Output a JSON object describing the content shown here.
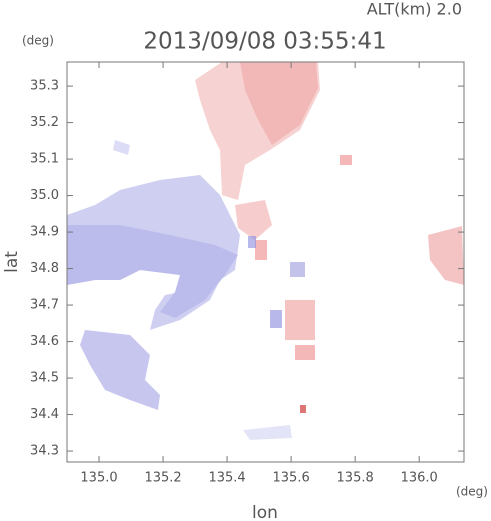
{
  "chart_data": {
    "type": "map",
    "title": "2013/09/08 03:55:41",
    "subtitle": "ALT(km) 2.0",
    "x_label": "lon",
    "y_label": "lat",
    "x_unit": "(deg)",
    "y_unit": "(deg)",
    "xlim": [
      134.9,
      136.14
    ],
    "ylim": [
      34.27,
      35.366
    ],
    "xticks": [
      {
        "value": 135,
        "label": "135.0"
      },
      135.2,
      135.4,
      135.6,
      135.8,
      {
        "value": 136,
        "label": "136.0"
      }
    ],
    "yticks": [
      34.3,
      34.4,
      34.5,
      34.6,
      34.7,
      34.8,
      34.9,
      {
        "value": 35,
        "label": "35.0"
      },
      35.1,
      35.2,
      35.3
    ]
  }
}
